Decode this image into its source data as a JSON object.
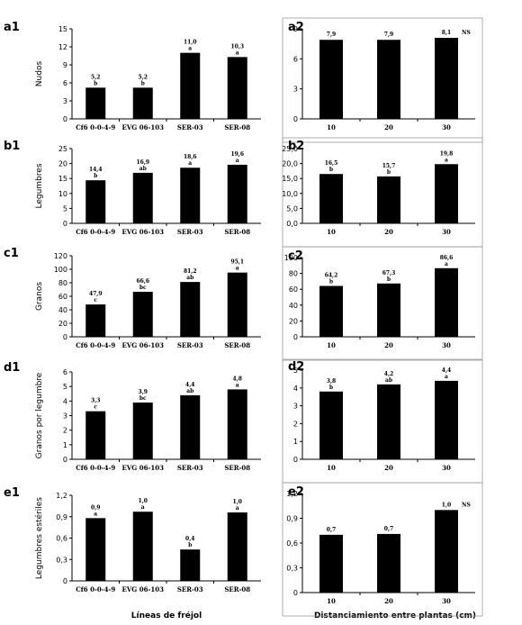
{
  "chart_data": [
    {
      "id": "a1",
      "type": "bar",
      "ylabel": "Nudos",
      "ylim": [
        0,
        15
      ],
      "yticks": [
        0,
        3,
        6,
        9,
        12,
        15
      ],
      "tick_labels": [
        "0",
        "3",
        "6",
        "9",
        "12",
        "15"
      ],
      "categories": [
        "Cf6 0-0-4-9",
        "EVG 06-103",
        "SER-03",
        "SER-08"
      ],
      "values": [
        5.2,
        5.2,
        11.0,
        10.3
      ],
      "value_labels": [
        "5,2",
        "5,2",
        "11,0",
        "10,3"
      ],
      "letters": [
        "b",
        "b",
        "a",
        "a"
      ],
      "note": ""
    },
    {
      "id": "a2",
      "type": "bar",
      "ylabel": "",
      "ylim": [
        0,
        9
      ],
      "yticks": [
        0,
        3,
        6,
        9
      ],
      "tick_labels": [
        "0",
        "3",
        "6",
        "9"
      ],
      "categories": [
        "10",
        "20",
        "30"
      ],
      "values": [
        7.9,
        7.9,
        8.1
      ],
      "value_labels": [
        "7,9",
        "7,9",
        "8,1"
      ],
      "letters": [
        "",
        "",
        ""
      ],
      "note": "NS"
    },
    {
      "id": "b1",
      "type": "bar",
      "ylabel": "Legumbres",
      "ylim": [
        0,
        25
      ],
      "yticks": [
        0,
        5,
        10,
        15,
        20,
        25
      ],
      "tick_labels": [
        "0",
        "5",
        "10",
        "15",
        "20",
        "25"
      ],
      "categories": [
        "Cf6 0-0-4-9",
        "EVG 06-103",
        "SER-03",
        "SER-08"
      ],
      "values": [
        14.4,
        16.9,
        18.6,
        19.6
      ],
      "value_labels": [
        "14,4",
        "16,9",
        "18,6",
        "19,6"
      ],
      "letters": [
        "b",
        "ab",
        "a",
        "a"
      ],
      "note": ""
    },
    {
      "id": "b2",
      "type": "bar",
      "ylabel": "",
      "ylim": [
        0,
        25
      ],
      "yticks": [
        0,
        5,
        10,
        15,
        20,
        25
      ],
      "tick_labels": [
        "0,0",
        "5,0",
        "10,0",
        "15,0",
        "20,0",
        "25,0"
      ],
      "categories": [
        "10",
        "20",
        "30"
      ],
      "values": [
        16.5,
        15.7,
        19.8
      ],
      "value_labels": [
        "16,5",
        "15,7",
        "19,8"
      ],
      "letters": [
        "b",
        "b",
        "a"
      ],
      "note": ""
    },
    {
      "id": "c1",
      "type": "bar",
      "ylabel": "Granos",
      "ylim": [
        0,
        120
      ],
      "yticks": [
        0,
        20,
        40,
        60,
        80,
        100,
        120
      ],
      "tick_labels": [
        "0",
        "20",
        "40",
        "60",
        "80",
        "100",
        "120"
      ],
      "categories": [
        "Cf6 0-0-4-9",
        "EVG 06-103",
        "SER-03",
        "SER-08"
      ],
      "values": [
        47.9,
        66.6,
        81.2,
        95.1
      ],
      "value_labels": [
        "47,9",
        "66,6",
        "81,2",
        "95,1"
      ],
      "letters": [
        "c",
        "bc",
        "ab",
        "a"
      ],
      "note": ""
    },
    {
      "id": "c2",
      "type": "bar",
      "ylabel": "",
      "ylim": [
        0,
        100
      ],
      "yticks": [
        0,
        20,
        40,
        60,
        80,
        100
      ],
      "tick_labels": [
        "0",
        "20",
        "40",
        "60",
        "80",
        "100"
      ],
      "categories": [
        "10",
        "20",
        "30"
      ],
      "values": [
        64.2,
        67.3,
        86.6
      ],
      "value_labels": [
        "64,2",
        "67,3",
        "86,6"
      ],
      "letters": [
        "b",
        "b",
        "a"
      ],
      "note": ""
    },
    {
      "id": "d1",
      "type": "bar",
      "ylabel": "Granos por legumbre",
      "ylim": [
        0,
        6
      ],
      "yticks": [
        0,
        1,
        2,
        3,
        4,
        5,
        6
      ],
      "tick_labels": [
        "0",
        "1",
        "2",
        "3",
        "4",
        "5",
        "6"
      ],
      "categories": [
        "Cf6 0-0-4-9",
        "EVG 06-103",
        "SER-03",
        "SER-08"
      ],
      "values": [
        3.3,
        3.9,
        4.4,
        4.8
      ],
      "value_labels": [
        "3,3",
        "3,9",
        "4,4",
        "4,8"
      ],
      "letters": [
        "c",
        "bc",
        "ab",
        "a"
      ],
      "note": ""
    },
    {
      "id": "d2",
      "type": "bar",
      "ylabel": "",
      "ylim": [
        0,
        5
      ],
      "yticks": [
        0,
        1,
        2,
        3,
        4,
        5
      ],
      "tick_labels": [
        "0",
        "1",
        "2",
        "3",
        "4",
        "5"
      ],
      "categories": [
        "10",
        "20",
        "30"
      ],
      "values": [
        3.8,
        4.2,
        4.4
      ],
      "value_labels": [
        "3,8",
        "4,2",
        "4,4"
      ],
      "letters": [
        "b",
        "ab",
        "a"
      ],
      "note": ""
    },
    {
      "id": "e1",
      "type": "bar",
      "ylabel": "Legumbres estériles",
      "ylim": [
        0,
        1.2
      ],
      "yticks": [
        0,
        0.3,
        0.6,
        0.9,
        1.2
      ],
      "tick_labels": [
        "0",
        "0,3",
        "0,6",
        "0,9",
        "1,2"
      ],
      "categories": [
        "Cf6 0-0-4-9",
        "EVG 06-103",
        "SER-03",
        "SER-08"
      ],
      "values": [
        0.88,
        0.97,
        0.44,
        0.96
      ],
      "value_labels": [
        "0,9",
        "1,0",
        "0,4",
        "1,0"
      ],
      "letters": [
        "a",
        "a",
        "b",
        "a"
      ],
      "note": ""
    },
    {
      "id": "e2",
      "type": "bar",
      "ylabel": "",
      "ylim": [
        0,
        1.2
      ],
      "yticks": [
        0,
        0.3,
        0.6,
        0.9,
        1.2
      ],
      "tick_labels": [
        "0",
        "0,3",
        "0,6",
        "0,9",
        "1,2"
      ],
      "categories": [
        "10",
        "20",
        "30"
      ],
      "values": [
        0.7,
        0.71,
        1.0
      ],
      "value_labels": [
        "0,7",
        "0,7",
        "1,0"
      ],
      "letters": [
        "",
        "",
        ""
      ],
      "note": "NS"
    }
  ],
  "x_titles": {
    "left": "Líneas de fréjol",
    "right": "Distanciamiento entre plantas (cm)"
  },
  "colors": {
    "bar": "#000000",
    "axis": "#000000",
    "frame": "#999999"
  }
}
